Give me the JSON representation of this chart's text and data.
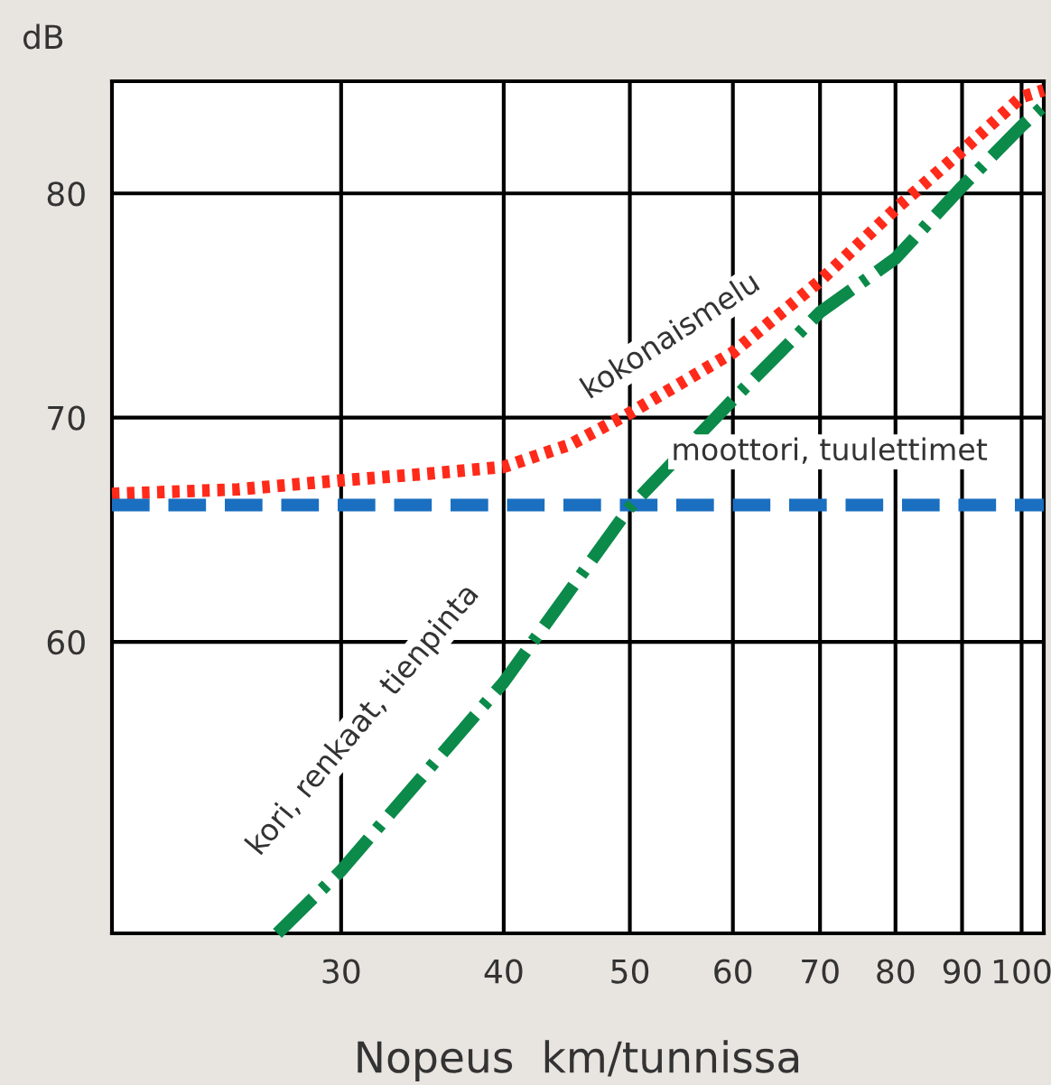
{
  "chart_data": {
    "type": "line",
    "xlabel": "Nopeus  km/tunnissa",
    "ylabel": "dB",
    "log": "x",
    "xlim": [
      20,
      104
    ],
    "xticks": [
      30,
      40,
      50,
      60,
      70,
      80,
      90,
      100
    ],
    "ylim": [
      47,
      85
    ],
    "yticks": [
      60,
      70,
      80
    ],
    "grid": true,
    "legend": false,
    "series": [
      {
        "color": "#ff2a1a",
        "line_style": "dotted",
        "x": [
          20,
          25,
          30,
          35,
          40,
          45,
          50,
          60,
          70,
          80,
          90,
          100,
          104
        ],
        "values": [
          66.6,
          66.8,
          67.2,
          67.5,
          67.8,
          68.8,
          70.2,
          72.9,
          76.1,
          79.3,
          81.9,
          84.3,
          84.6
        ]
      },
      {
        "color": "#1a6fc0",
        "line_style": "dashed",
        "x": [
          20,
          104
        ],
        "values": [
          66.1,
          66.1
        ]
      },
      {
        "color": "#0b8a4a",
        "line_style": "dashdot",
        "x": [
          26.8,
          30,
          40,
          50,
          60,
          70,
          80,
          90,
          100,
          104
        ],
        "values": [
          47,
          49.8,
          58.2,
          66,
          70.8,
          74.7,
          77.1,
          80.3,
          83,
          83.9
        ]
      }
    ],
    "annotations": [
      "kokonaismelu",
      "moottori, tuulettimet",
      "kori, renkaat, tienpinta"
    ]
  }
}
